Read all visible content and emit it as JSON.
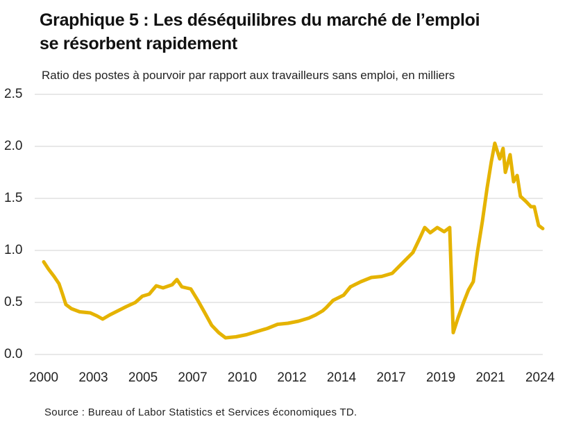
{
  "chart_data": {
    "type": "line",
    "title": "Graphique 5 : Les déséquilibres du marché de l’emploi se résorbent rapidement",
    "subtitle": "Ratio des postes à pourvoir par rapport aux travailleurs sans emploi, en milliers",
    "source": "Source : Bureau of Labor Statistics et Services économiques TD.",
    "x": [
      2000.0,
      2000.23,
      2000.5,
      2000.74,
      2000.91,
      2001.07,
      2001.34,
      2001.74,
      2002.25,
      2002.58,
      2002.85,
      2003.19,
      2003.59,
      2003.99,
      2004.43,
      2004.77,
      2005.1,
      2005.44,
      2005.77,
      2006.21,
      2006.44,
      2006.68,
      2007.11,
      2007.45,
      2007.79,
      2008.12,
      2008.46,
      2008.79,
      2009.3,
      2009.8,
      2010.3,
      2010.81,
      2011.31,
      2011.81,
      2012.32,
      2012.82,
      2013.15,
      2013.49,
      2013.66,
      2013.99,
      2014.5,
      2014.83,
      2015.34,
      2015.84,
      2016.34,
      2016.85,
      2017.35,
      2017.85,
      2018.19,
      2018.42,
      2018.69,
      2019.03,
      2019.36,
      2019.63,
      2019.8,
      2020.03,
      2020.3,
      2020.54,
      2020.77,
      2020.97,
      2021.21,
      2021.44,
      2021.64,
      2021.81,
      2022.05,
      2022.21,
      2022.32,
      2022.55,
      2022.72,
      2022.89,
      2023.05,
      2023.32,
      2023.56,
      2023.72,
      2023.93,
      2024.13
    ],
    "series": [
      {
        "name": "Ratio",
        "color": "#e5b300",
        "values": [
          0.89,
          0.82,
          0.75,
          0.68,
          0.58,
          0.48,
          0.44,
          0.41,
          0.4,
          0.37,
          0.34,
          0.38,
          0.42,
          0.46,
          0.5,
          0.56,
          0.58,
          0.66,
          0.64,
          0.67,
          0.72,
          0.65,
          0.63,
          0.52,
          0.4,
          0.28,
          0.21,
          0.16,
          0.17,
          0.19,
          0.22,
          0.25,
          0.29,
          0.3,
          0.32,
          0.35,
          0.38,
          0.42,
          0.45,
          0.52,
          0.57,
          0.65,
          0.7,
          0.74,
          0.75,
          0.78,
          0.88,
          0.98,
          1.12,
          1.22,
          1.17,
          1.22,
          1.18,
          1.22,
          0.21,
          0.35,
          0.5,
          0.62,
          0.7,
          0.98,
          1.28,
          1.6,
          1.85,
          2.03,
          1.88,
          1.98,
          1.75,
          1.92,
          1.66,
          1.72,
          1.52,
          1.47,
          1.42,
          1.42,
          1.24,
          1.21
        ]
      }
    ],
    "xlim": [
      2000,
      2024.13
    ],
    "xticks": [
      {
        "value": 2000,
        "label": "2000"
      },
      {
        "value": 2002.4,
        "label": "2003"
      },
      {
        "value": 2004.8,
        "label": "2005"
      },
      {
        "value": 2007.2,
        "label": "2007"
      },
      {
        "value": 2009.6,
        "label": "2010"
      },
      {
        "value": 2012,
        "label": "2012"
      },
      {
        "value": 2014.4,
        "label": "2014"
      },
      {
        "value": 2016.8,
        "label": "2017"
      },
      {
        "value": 2019.2,
        "label": "2019"
      },
      {
        "value": 2021.6,
        "label": "2021"
      },
      {
        "value": 2024,
        "label": "2024"
      }
    ],
    "ylim": [
      0,
      2.5
    ],
    "yticks": [
      {
        "value": 0,
        "label": "0.0"
      },
      0.5,
      {
        "value": 1,
        "label": "1.0"
      },
      1.5,
      {
        "value": 2,
        "label": "2.0"
      },
      2.5
    ],
    "grid": true
  }
}
